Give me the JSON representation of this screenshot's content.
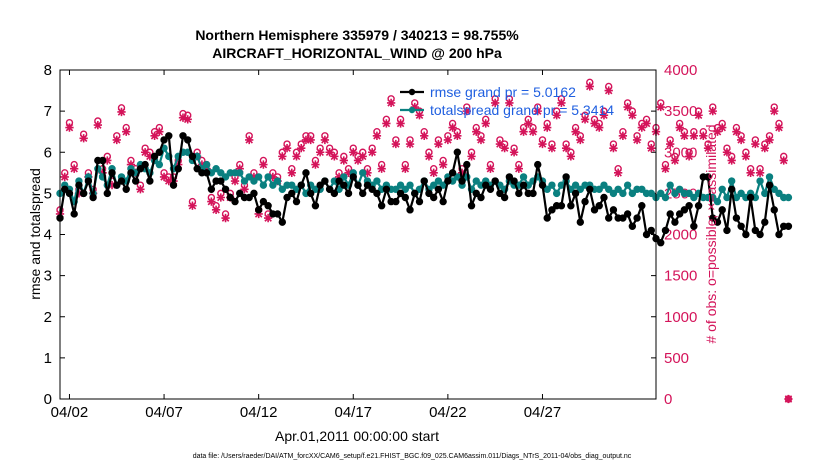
{
  "chart_data": {
    "type": "line",
    "title_line1": "Northern Hemisphere 335979 / 340213 = 98.755%",
    "title_line2": "AIRCRAFT_HORIZONTAL_WIND @ 200 hPa",
    "ylabel_left": "rmse and totalspread",
    "ylabel_right": "# of obs: o=possible; ×=assimilated",
    "xlabel": "Apr.01,2011 00:00:00 start",
    "footnote": "data file: /Users/raeder/DAI/ATM_forcXX/CAM6_setup/f.e21.FHIST_BGC.f09_025.CAM6assim.011/Diags_NTrS_2011-04/obs_diag_output.nc",
    "xlim": [
      1.5,
      33
    ],
    "ylim_left": [
      0,
      8
    ],
    "ylim_right": [
      0,
      4000
    ],
    "x_ticks": [
      2,
      7,
      12,
      17,
      22,
      27
    ],
    "x_ticklabels": [
      "04/02",
      "04/07",
      "04/12",
      "04/17",
      "04/22",
      "04/27"
    ],
    "y_ticks_left": [
      0,
      1,
      2,
      3,
      4,
      5,
      6,
      7,
      8
    ],
    "y_ticks_left_labels": [
      "0",
      "1",
      "2",
      "3",
      "4",
      "5",
      "6",
      "7",
      "8"
    ],
    "y_ticks_right": [
      0,
      500,
      1000,
      1500,
      2000,
      2500,
      3000,
      3500,
      4000
    ],
    "y_ticks_right_labels": [
      "0",
      "500",
      "1000",
      "1500",
      "2000",
      "2500",
      "3000",
      "3500",
      "4000"
    ],
    "colors": {
      "rmse": "#000000",
      "spread": "#0a8080",
      "obs": "#d4145a",
      "legend_text": "#1f5fe0"
    },
    "legend": [
      {
        "name": "rmse",
        "label": "rmse grand pr = 5.0162"
      },
      {
        "name": "spread",
        "label": "totalspread grand pr = 5.3414"
      }
    ],
    "x_start": 1.5,
    "x_step": 0.25,
    "series": [
      {
        "name": "rmse",
        "values": [
          4.4,
          5.1,
          5.0,
          4.5,
          5.2,
          5.0,
          5.3,
          4.9,
          5.8,
          5.8,
          5.0,
          5.5,
          5.2,
          5.3,
          5.1,
          5.5,
          5.3,
          5.6,
          5.7,
          5.3,
          5.9,
          6.0,
          6.3,
          6.4,
          5.2,
          5.6,
          6.4,
          6.3,
          5.9,
          5.6,
          5.5,
          5.5,
          5.1,
          5.3,
          5.3,
          5.1,
          4.9,
          4.8,
          5.0,
          4.9,
          4.9,
          5.0,
          4.6,
          4.8,
          4.7,
          4.5,
          4.5,
          4.3,
          4.9,
          5.0,
          4.8,
          5.2,
          5.5,
          5.0,
          4.7,
          5.2,
          5.3,
          5.1,
          5.0,
          5.3,
          5.2,
          5.0,
          5.4,
          5.2,
          5.0,
          5.2,
          5.1,
          5.0,
          4.7,
          5.1,
          4.8,
          4.8,
          5.0,
          4.9,
          4.6,
          5.0,
          4.8,
          5.3,
          5.0,
          4.9,
          5.1,
          4.8,
          5.3,
          5.5,
          6.0,
          5.3,
          5.7,
          4.7,
          5.0,
          4.9,
          5.2,
          5.1,
          5.3,
          5.0,
          4.9,
          5.4,
          5.3,
          5.0,
          5.2,
          5.0,
          5.0,
          5.7,
          5.2,
          4.4,
          4.6,
          4.7,
          4.7,
          5.4,
          4.7,
          5.0,
          4.3,
          4.8,
          5.1,
          4.6,
          4.7,
          4.9,
          4.4,
          4.6,
          4.4,
          4.4,
          4.5,
          4.2,
          4.4,
          4.7,
          4.0,
          4.1,
          3.9,
          3.8,
          4.1,
          4.5,
          4.3,
          4.5,
          4.6,
          4.7,
          4.2,
          4.7,
          5.4,
          5.4,
          4.4,
          4.3,
          4.6,
          4.1,
          5.1,
          4.4,
          4.2,
          4.0,
          4.9,
          4.1,
          4.0,
          4.3,
          5.2,
          4.6,
          4.0,
          4.2,
          4.2
        ]
      },
      {
        "name": "spread",
        "values": [
          5.0,
          5.2,
          5.1,
          4.8,
          5.3,
          5.0,
          5.4,
          5.0,
          5.6,
          5.4,
          5.2,
          5.6,
          5.2,
          5.4,
          5.3,
          5.6,
          5.5,
          5.7,
          5.6,
          5.5,
          5.8,
          5.7,
          6.1,
          5.9,
          5.6,
          5.9,
          6.0,
          6.0,
          5.8,
          5.9,
          5.6,
          5.7,
          5.5,
          5.6,
          5.5,
          5.4,
          5.5,
          5.5,
          5.5,
          5.3,
          5.4,
          5.3,
          5.4,
          5.2,
          5.4,
          5.2,
          5.3,
          5.1,
          5.2,
          5.2,
          5.1,
          5.2,
          5.0,
          5.2,
          5.1,
          5.1,
          5.3,
          5.1,
          5.3,
          5.1,
          5.4,
          5.2,
          5.5,
          5.2,
          5.5,
          5.3,
          5.2,
          5.3,
          5.1,
          5.2,
          5.1,
          5.1,
          5.2,
          5.1,
          5.2,
          5.0,
          5.1,
          5.3,
          5.1,
          5.2,
          5.3,
          5.2,
          5.4,
          5.3,
          5.4,
          5.2,
          5.4,
          5.1,
          5.3,
          5.2,
          5.3,
          5.2,
          5.3,
          5.2,
          5.1,
          5.3,
          5.2,
          5.2,
          5.4,
          5.2,
          5.3,
          5.4,
          5.3,
          5.1,
          5.2,
          5.0,
          5.2,
          5.3,
          5.1,
          5.2,
          5.1,
          5.2,
          5.2,
          5.1,
          5.1,
          5.2,
          5.1,
          5.0,
          5.1,
          5.0,
          5.2,
          5.0,
          5.1,
          5.1,
          5.0,
          5.0,
          4.9,
          5.0,
          4.9,
          5.2,
          5.0,
          5.1,
          5.0,
          5.0,
          4.9,
          5.0,
          4.9,
          4.9,
          4.9,
          4.8,
          5.1,
          4.9,
          5.3,
          4.9,
          5.0,
          4.9,
          5.0,
          4.9,
          5.3,
          5.0,
          5.4,
          5.1,
          5.0,
          4.9,
          4.9
        ]
      },
      {
        "name": "obs_possible",
        "values": [
          2300,
          2750,
          3360,
          2850,
          2550,
          3220,
          2750,
          2550,
          3380,
          2800,
          2950,
          2650,
          3200,
          3540,
          3300,
          2900,
          2800,
          2600,
          3050,
          3000,
          3250,
          3300,
          2750,
          2700,
          2700,
          2900,
          3470,
          3450,
          2400,
          3000,
          2900,
          2850,
          2450,
          2350,
          2500,
          2250,
          2500,
          2700,
          2850,
          2600,
          3200,
          2750,
          2300,
          2900,
          2250,
          2750,
          2700,
          3000,
          3100,
          2800,
          3000,
          3100,
          3200,
          3200,
          2900,
          3050,
          3200,
          3050,
          3000,
          2750,
          2950,
          2800,
          3050,
          2950,
          3000,
          2800,
          3050,
          3250,
          2850,
          3400,
          3650,
          3150,
          3400,
          2850,
          3150,
          3600,
          3500,
          3250,
          3000,
          2800,
          3150,
          2900,
          3200,
          3350,
          3250,
          2800,
          3550,
          3000,
          3300,
          3200,
          3400,
          2850,
          3650,
          3150,
          3100,
          3650,
          3050,
          2850,
          3300,
          3400,
          3300,
          3550,
          3150,
          3350,
          3100,
          3500,
          3650,
          3100,
          3000,
          3300,
          3200,
          3450,
          3850,
          3400,
          3350,
          3500,
          3800,
          3100,
          2800,
          3250,
          3600,
          3500,
          3200,
          3350,
          3400,
          3100,
          3300,
          3600,
          2850,
          3150,
          2950,
          3350,
          3250,
          3000,
          3250,
          3500,
          3250,
          3100,
          3550,
          3300,
          3350,
          3050,
          2950,
          3300,
          3200,
          3000,
          2800,
          3150,
          2800,
          3100,
          3200,
          3550,
          3350,
          2950,
          0
        ]
      },
      {
        "name": "obs_assimilated",
        "values": [
          2250,
          2700,
          3300,
          2800,
          2500,
          3170,
          2700,
          2500,
          3330,
          2750,
          2900,
          2600,
          3150,
          3490,
          3250,
          2850,
          2750,
          2550,
          3000,
          2950,
          3200,
          3250,
          2700,
          2650,
          2650,
          2850,
          3420,
          3400,
          2350,
          2950,
          2850,
          2800,
          2400,
          2300,
          2450,
          2200,
          2450,
          2650,
          2800,
          2550,
          3150,
          2700,
          2250,
          2850,
          2200,
          2700,
          2650,
          2950,
          3050,
          2750,
          2950,
          3050,
          3150,
          3150,
          2850,
          3000,
          3150,
          3000,
          2950,
          2700,
          2900,
          2750,
          3000,
          2900,
          2950,
          2750,
          3000,
          3200,
          2800,
          3350,
          3600,
          3100,
          3350,
          2800,
          3100,
          3550,
          3450,
          3200,
          2950,
          2750,
          3100,
          2850,
          3150,
          3300,
          3200,
          2750,
          3500,
          2950,
          3250,
          3150,
          3350,
          2800,
          3600,
          3100,
          3050,
          3600,
          3000,
          2800,
          3250,
          3350,
          3250,
          3500,
          3100,
          3300,
          3050,
          3450,
          3600,
          3050,
          2950,
          3250,
          3150,
          3400,
          3800,
          3350,
          3300,
          3450,
          3750,
          3050,
          2750,
          3200,
          3550,
          3450,
          3150,
          3300,
          3350,
          3050,
          3250,
          3550,
          2800,
          3100,
          2900,
          3300,
          3200,
          2950,
          3200,
          3450,
          3200,
          3050,
          3500,
          3250,
          3300,
          3000,
          2900,
          3250,
          3150,
          2950,
          2750,
          3100,
          2750,
          3050,
          3150,
          3500,
          3300,
          2900,
          0
        ]
      }
    ]
  }
}
